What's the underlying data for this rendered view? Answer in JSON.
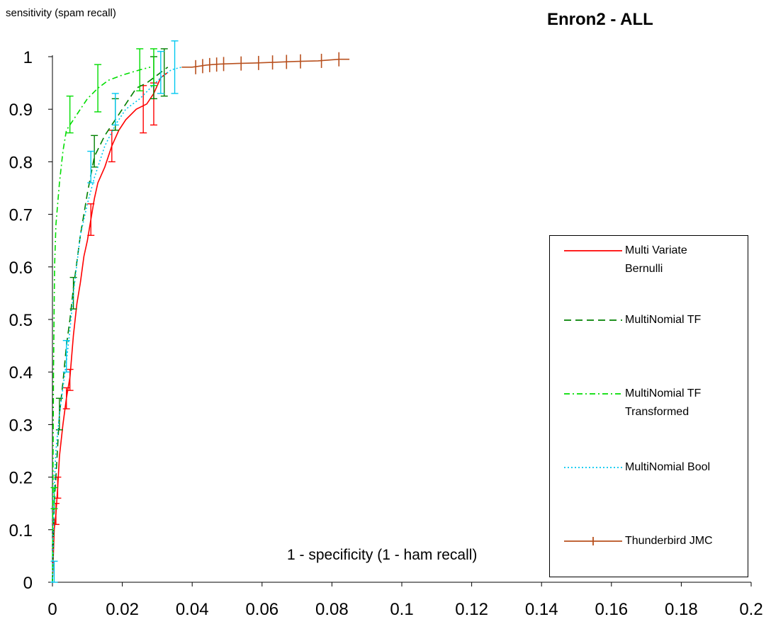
{
  "chart_data": {
    "type": "line",
    "title": "Enron2 - ALL",
    "ylabel": "sensitivity (spam recall)",
    "xlabel": "1 - specificity (1 - ham recall)",
    "xlim": [
      0,
      0.2
    ],
    "ylim": [
      0,
      1
    ],
    "x_ticks": [
      "0",
      "0.02",
      "0.04",
      "0.06",
      "0.08",
      "0.1",
      "0.12",
      "0.14",
      "0.16",
      "0.18",
      "0.2"
    ],
    "y_ticks": [
      "0",
      "0.1",
      "0.2",
      "0.3",
      "0.4",
      "0.5",
      "0.6",
      "0.7",
      "0.8",
      "0.9",
      "1"
    ],
    "grid": false,
    "legend_position": "right",
    "series": [
      {
        "name": "Multi Variate\nBernulli",
        "color": "#ff0000",
        "dash": "",
        "points": [
          [
            0,
            0
          ],
          [
            0.0005,
            0.1
          ],
          [
            0.001,
            0.13
          ],
          [
            0.0015,
            0.18
          ],
          [
            0.002,
            0.24
          ],
          [
            0.003,
            0.3
          ],
          [
            0.004,
            0.35
          ],
          [
            0.005,
            0.39
          ],
          [
            0.006,
            0.47
          ],
          [
            0.007,
            0.53
          ],
          [
            0.008,
            0.57
          ],
          [
            0.009,
            0.62
          ],
          [
            0.01,
            0.65
          ],
          [
            0.011,
            0.69
          ],
          [
            0.012,
            0.73
          ],
          [
            0.013,
            0.76
          ],
          [
            0.015,
            0.79
          ],
          [
            0.017,
            0.83
          ],
          [
            0.019,
            0.86
          ],
          [
            0.021,
            0.88
          ],
          [
            0.024,
            0.9
          ],
          [
            0.027,
            0.91
          ],
          [
            0.029,
            0.93
          ],
          [
            0.031,
            0.96
          ],
          [
            0.033,
            0.97
          ]
        ],
        "error_bars": [
          [
            0.001,
            0.13,
            0.02
          ],
          [
            0.0015,
            0.18,
            0.02
          ],
          [
            0.004,
            0.35,
            0.02
          ],
          [
            0.005,
            0.385,
            0.02
          ],
          [
            0.011,
            0.69,
            0.03
          ],
          [
            0.017,
            0.83,
            0.03
          ],
          [
            0.026,
            0.9,
            0.045
          ],
          [
            0.029,
            0.91,
            0.04
          ]
        ]
      },
      {
        "name": "MultiNomial TF",
        "color": "#008000",
        "dash": "10 6",
        "points": [
          [
            0,
            0
          ],
          [
            0.0005,
            0.15
          ],
          [
            0.001,
            0.2
          ],
          [
            0.002,
            0.32
          ],
          [
            0.003,
            0.38
          ],
          [
            0.004,
            0.45
          ],
          [
            0.005,
            0.5
          ],
          [
            0.006,
            0.56
          ],
          [
            0.008,
            0.66
          ],
          [
            0.01,
            0.74
          ],
          [
            0.012,
            0.81
          ],
          [
            0.015,
            0.85
          ],
          [
            0.018,
            0.88
          ],
          [
            0.021,
            0.91
          ],
          [
            0.024,
            0.94
          ],
          [
            0.027,
            0.95
          ],
          [
            0.029,
            0.96
          ],
          [
            0.031,
            0.97
          ],
          [
            0.033,
            0.98
          ]
        ],
        "error_bars": [
          [
            0.002,
            0.32,
            0.03
          ],
          [
            0.006,
            0.55,
            0.03
          ],
          [
            0.012,
            0.82,
            0.03
          ],
          [
            0.018,
            0.89,
            0.03
          ],
          [
            0.029,
            0.96,
            0.04
          ],
          [
            0.032,
            0.97,
            0.045
          ]
        ]
      },
      {
        "name": "MultiNomial TF\nTransformed",
        "color": "#00dd00",
        "dash": "8 4 2 4",
        "points": [
          [
            0,
            0
          ],
          [
            0.0003,
            0.4
          ],
          [
            0.0006,
            0.6
          ],
          [
            0.001,
            0.68
          ],
          [
            0.002,
            0.76
          ],
          [
            0.003,
            0.82
          ],
          [
            0.004,
            0.86
          ],
          [
            0.006,
            0.88
          ],
          [
            0.008,
            0.9
          ],
          [
            0.01,
            0.92
          ],
          [
            0.013,
            0.94
          ],
          [
            0.016,
            0.955
          ],
          [
            0.02,
            0.965
          ],
          [
            0.025,
            0.975
          ],
          [
            0.028,
            0.98
          ]
        ],
        "error_bars": [
          [
            0.0005,
            0.16,
            0.02
          ],
          [
            0.005,
            0.89,
            0.035
          ],
          [
            0.013,
            0.94,
            0.045
          ],
          [
            0.025,
            0.975,
            0.04
          ],
          [
            0.029,
            0.98,
            0.035
          ]
        ]
      },
      {
        "name": "MultiNomial Bool",
        "color": "#00c8f0",
        "dash": "2 3",
        "points": [
          [
            0,
            0
          ],
          [
            0.0005,
            0.18
          ],
          [
            0.001,
            0.25
          ],
          [
            0.002,
            0.32
          ],
          [
            0.003,
            0.37
          ],
          [
            0.004,
            0.42
          ],
          [
            0.005,
            0.48
          ],
          [
            0.006,
            0.55
          ],
          [
            0.008,
            0.66
          ],
          [
            0.01,
            0.72
          ],
          [
            0.012,
            0.77
          ],
          [
            0.015,
            0.83
          ],
          [
            0.018,
            0.87
          ],
          [
            0.021,
            0.9
          ],
          [
            0.025,
            0.92
          ],
          [
            0.028,
            0.94
          ],
          [
            0.031,
            0.96
          ],
          [
            0.034,
            0.975
          ],
          [
            0.037,
            0.98
          ]
        ],
        "error_bars": [
          [
            0.0005,
            0.02,
            0.02
          ],
          [
            0.004,
            0.43,
            0.03
          ],
          [
            0.011,
            0.79,
            0.03
          ],
          [
            0.018,
            0.9,
            0.03
          ],
          [
            0.031,
            0.97,
            0.04
          ],
          [
            0.035,
            0.98,
            0.05
          ]
        ]
      },
      {
        "name": "Thunderbird JMC",
        "color": "#b8501e",
        "dash": "",
        "points": [
          [
            0.037,
            0.98
          ],
          [
            0.04,
            0.98
          ],
          [
            0.042,
            0.982
          ],
          [
            0.044,
            0.984
          ],
          [
            0.046,
            0.985
          ],
          [
            0.048,
            0.986
          ],
          [
            0.053,
            0.987
          ],
          [
            0.058,
            0.988
          ],
          [
            0.062,
            0.989
          ],
          [
            0.066,
            0.99
          ],
          [
            0.07,
            0.991
          ],
          [
            0.076,
            0.992
          ],
          [
            0.082,
            0.995
          ],
          [
            0.085,
            0.995
          ]
        ],
        "markers": [
          [
            0.041,
            0.98
          ],
          [
            0.043,
            0.982
          ],
          [
            0.045,
            0.984
          ],
          [
            0.047,
            0.985
          ],
          [
            0.049,
            0.986
          ],
          [
            0.054,
            0.987
          ],
          [
            0.059,
            0.988
          ],
          [
            0.063,
            0.989
          ],
          [
            0.067,
            0.99
          ],
          [
            0.071,
            0.991
          ],
          [
            0.077,
            0.992
          ],
          [
            0.082,
            0.995
          ]
        ]
      }
    ]
  }
}
